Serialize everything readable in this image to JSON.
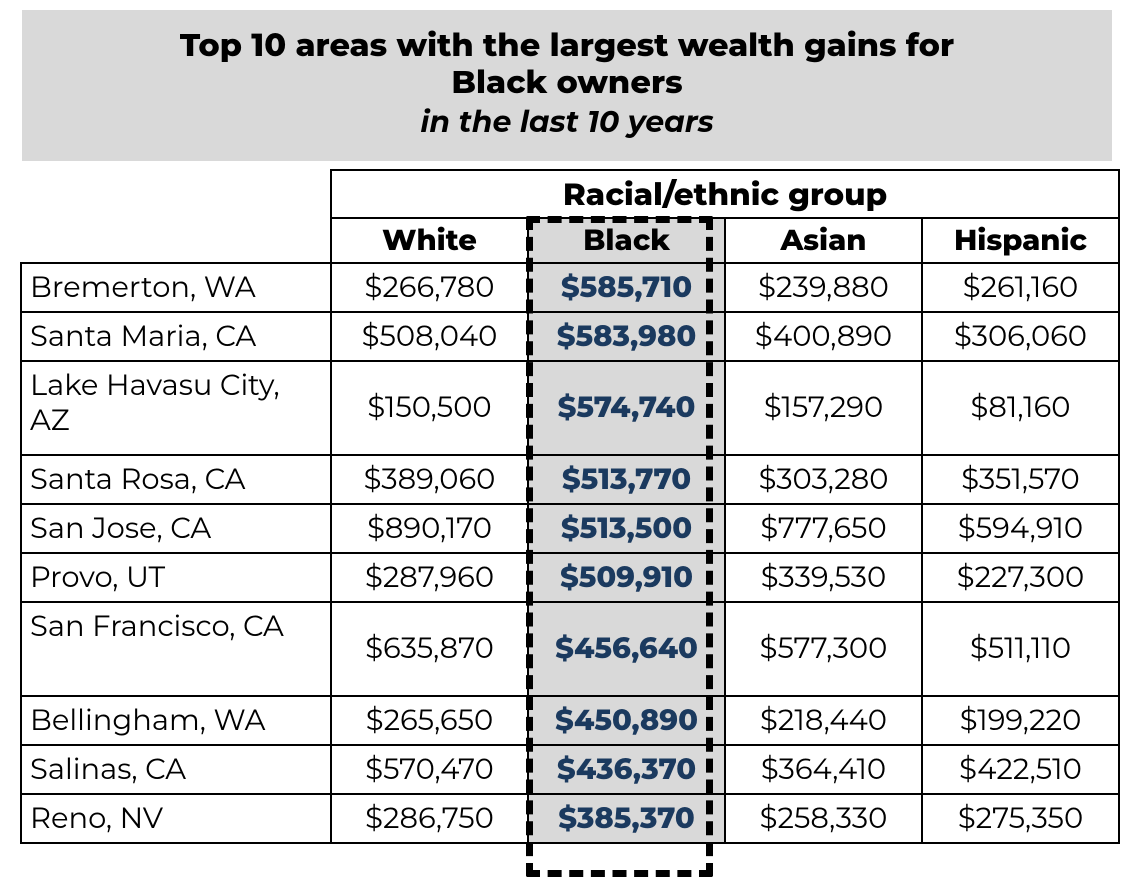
{
  "title": {
    "line1": "Top 10 areas with the largest wealth gains for",
    "line2": "Black owners",
    "line3": "in the last 10 years"
  },
  "table": {
    "group_header": "Racial/ethnic group",
    "columns": [
      "White",
      "Black",
      "Asian",
      "Hispanic"
    ],
    "highlight_column_index": 1,
    "highlight_text_color": "#1b3a5f",
    "highlight_bg_color": "#d9d9d9",
    "border_color": "#000000",
    "border_width": 2,
    "dash_border_width": 7,
    "font_size_header": 31,
    "font_size_subheader": 29,
    "font_size_cell": 29,
    "font_weight_header": 800,
    "rows": [
      {
        "label": "Bremerton, WA",
        "values": [
          "$266,780",
          "$585,710",
          "$239,880",
          "$261,160"
        ]
      },
      {
        "label": "Santa Maria, CA",
        "values": [
          "$508,040",
          "$583,980",
          "$400,890",
          "$306,060"
        ]
      },
      {
        "label": "Lake Havasu City, AZ",
        "values": [
          "$150,500",
          "$574,740",
          "$157,290",
          "$81,160"
        ],
        "tall": true
      },
      {
        "label": "Santa Rosa, CA",
        "values": [
          "$389,060",
          "$513,770",
          "$303,280",
          "$351,570"
        ]
      },
      {
        "label": "San Jose, CA",
        "values": [
          "$890,170",
          "$513,500",
          "$777,650",
          "$594,910"
        ]
      },
      {
        "label": "Provo, UT",
        "values": [
          "$287,960",
          "$509,910",
          "$339,530",
          "$227,300"
        ]
      },
      {
        "label": "San Francisco, CA",
        "values": [
          "$635,870",
          "$456,640",
          "$577,300",
          "$511,110"
        ],
        "tall": true
      },
      {
        "label": "Bellingham, WA",
        "values": [
          "$265,650",
          "$450,890",
          "$218,440",
          "$199,220"
        ]
      },
      {
        "label": "Salinas, CA",
        "values": [
          "$570,470",
          "$436,370",
          "$364,410",
          "$422,510"
        ]
      },
      {
        "label": "Reno, NV",
        "values": [
          "$286,750",
          "$385,370",
          "$258,330",
          "$275,350"
        ]
      }
    ]
  },
  "styling": {
    "title_bg": "#d9d9d9",
    "page_bg": "#ffffff",
    "text_color": "#000000"
  }
}
